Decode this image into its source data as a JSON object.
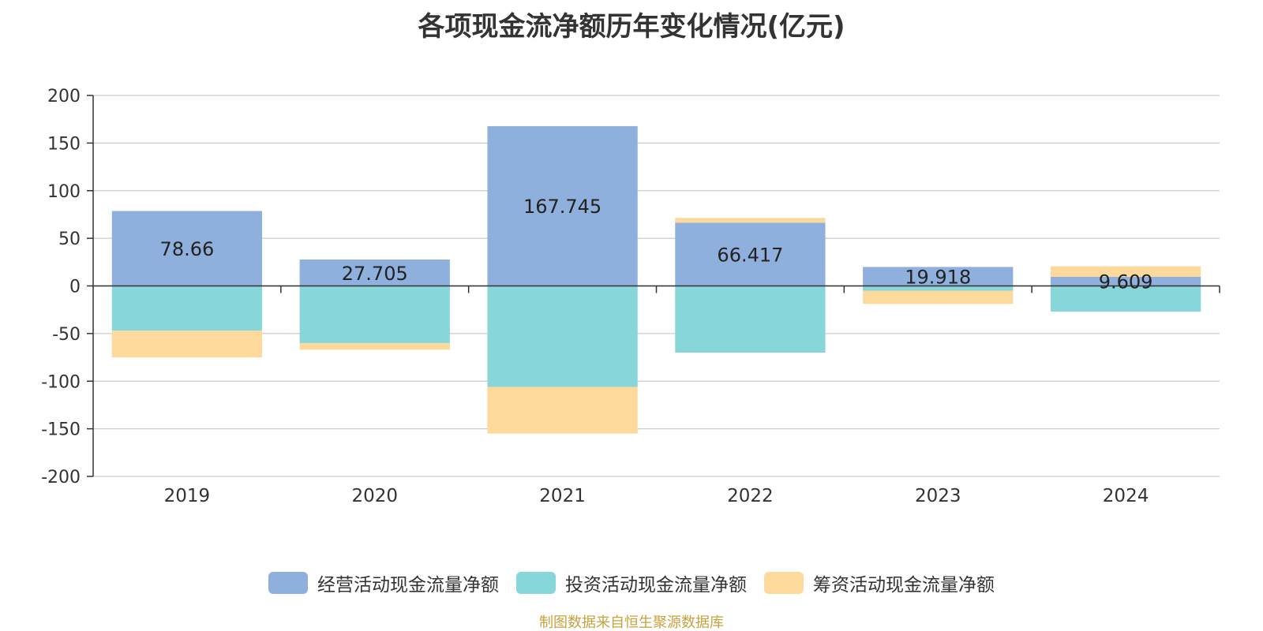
{
  "chart_data": {
    "type": "bar",
    "stacked": true,
    "title": "各项现金流净额历年变化情况(亿元)",
    "categories": [
      "2019",
      "2020",
      "2021",
      "2022",
      "2023",
      "2024"
    ],
    "ylim": [
      -200,
      200
    ],
    "yticks": [
      200,
      150,
      100,
      50,
      0,
      -50,
      -100,
      -150,
      -200
    ],
    "grid": true,
    "legend_position": "bottom",
    "series": [
      {
        "name": "经营活动现金流量净额",
        "color": "#8fafdc",
        "values": [
          78.66,
          27.705,
          167.745,
          66.417,
          19.918,
          9.609
        ]
      },
      {
        "name": "投资活动现金流量净额",
        "color": "#87d6d9",
        "values": [
          -47,
          -60,
          -106,
          -70,
          -5,
          -27
        ]
      },
      {
        "name": "筹资活动现金流量净额",
        "color": "#fdd99b",
        "values": [
          -28,
          -7,
          -49,
          5,
          -14,
          11
        ]
      }
    ],
    "data_labels": [
      "78.66",
      "27.705",
      "167.745",
      "66.417",
      "19.918",
      "9.609"
    ]
  },
  "source_note": "制图数据来自恒生聚源数据库"
}
